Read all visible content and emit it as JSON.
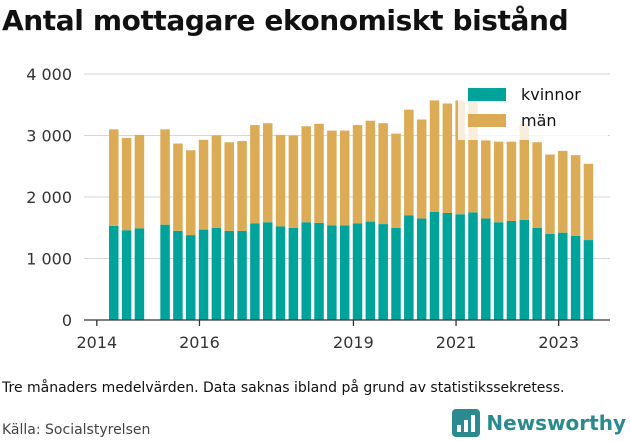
{
  "title": "Antal mottagare ekonomiskt bistånd",
  "note": "Tre månaders medelvärden. Data saknas ibland på grund av statistikssekretess.",
  "source": "Källa: Socialstyrelsen",
  "brand": {
    "name": "Newsworthy",
    "icon": "newsworthy-logo-icon",
    "color": "#2b8a8f"
  },
  "colors": {
    "kvinnor": "#00a39a",
    "man": "#dbab56",
    "grid": "#d6d6d6",
    "axis": "#333333"
  },
  "chart_data": {
    "type": "bar",
    "stacked": true,
    "x_start": 2014.33,
    "x_step": 0.25,
    "xticks": [
      2014,
      2016,
      2019,
      2021,
      2023
    ],
    "xtick_labels": [
      "2014",
      "2016",
      "2019",
      "2021",
      "2023"
    ],
    "ylim": [
      0,
      4000
    ],
    "yticks": [
      0,
      1000,
      2000,
      3000,
      4000
    ],
    "ytick_labels": [
      "0",
      "1 000",
      "2 000",
      "3 000",
      "4 000"
    ],
    "grid": true,
    "legend_position": "top-right",
    "series": [
      {
        "name": "kvinnor",
        "values": [
          1530,
          1460,
          1490,
          null,
          1550,
          1450,
          1380,
          1470,
          1500,
          1450,
          1450,
          1570,
          1590,
          1520,
          1500,
          1590,
          1580,
          1540,
          1540,
          1570,
          1600,
          1560,
          1500,
          1700,
          1650,
          1760,
          1740,
          1720,
          1750,
          1650,
          1590,
          1610,
          1630,
          1500,
          1400,
          1420,
          1370,
          1300
        ]
      },
      {
        "name": "män",
        "values": [
          1570,
          1500,
          1520,
          null,
          1550,
          1420,
          1380,
          1460,
          1500,
          1440,
          1460,
          1600,
          1610,
          1490,
          1500,
          1560,
          1610,
          1540,
          1540,
          1600,
          1640,
          1640,
          1530,
          1720,
          1610,
          1810,
          1780,
          1850,
          1800,
          1270,
          1310,
          1290,
          1560,
          1390,
          1290,
          1330,
          1310,
          1240
        ]
      }
    ]
  }
}
